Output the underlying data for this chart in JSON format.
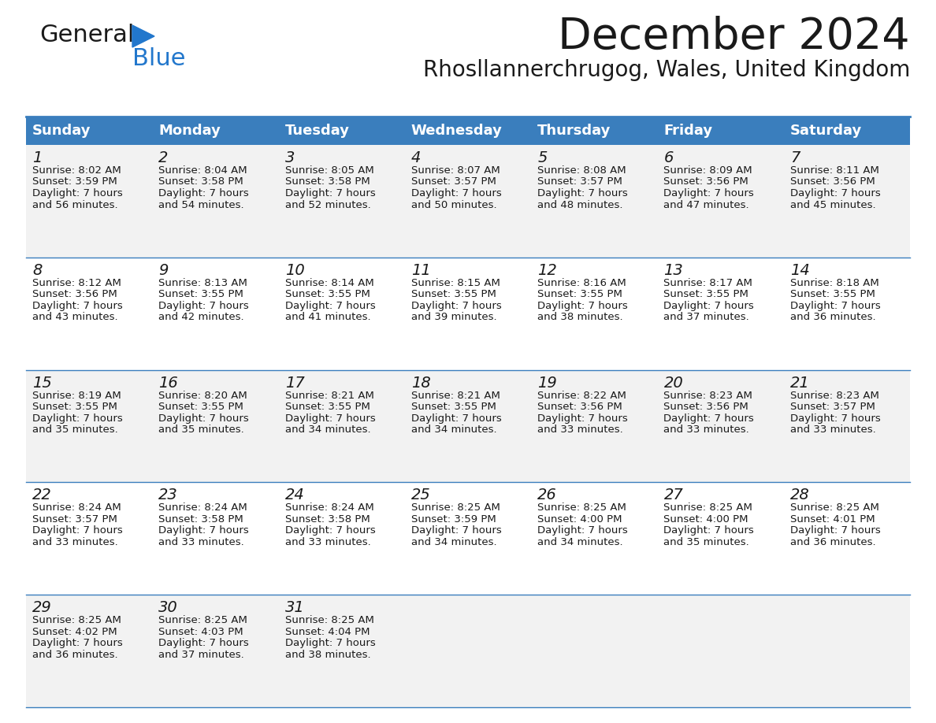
{
  "title": "December 2024",
  "subtitle": "Rhosllannerchrugog, Wales, United Kingdom",
  "header_color": "#3A7EBD",
  "header_text_color": "#FFFFFF",
  "cell_bg_even": "#F2F2F2",
  "cell_bg_odd": "#FFFFFF",
  "border_color": "#3A7EBD",
  "text_color": "#1a1a1a",
  "day_names": [
    "Sunday",
    "Monday",
    "Tuesday",
    "Wednesday",
    "Thursday",
    "Friday",
    "Saturday"
  ],
  "weeks": [
    [
      {
        "day": 1,
        "sunrise": "8:02 AM",
        "sunset": "3:59 PM",
        "daylight_hours": 7,
        "daylight_minutes": 56
      },
      {
        "day": 2,
        "sunrise": "8:04 AM",
        "sunset": "3:58 PM",
        "daylight_hours": 7,
        "daylight_minutes": 54
      },
      {
        "day": 3,
        "sunrise": "8:05 AM",
        "sunset": "3:58 PM",
        "daylight_hours": 7,
        "daylight_minutes": 52
      },
      {
        "day": 4,
        "sunrise": "8:07 AM",
        "sunset": "3:57 PM",
        "daylight_hours": 7,
        "daylight_minutes": 50
      },
      {
        "day": 5,
        "sunrise": "8:08 AM",
        "sunset": "3:57 PM",
        "daylight_hours": 7,
        "daylight_minutes": 48
      },
      {
        "day": 6,
        "sunrise": "8:09 AM",
        "sunset": "3:56 PM",
        "daylight_hours": 7,
        "daylight_minutes": 47
      },
      {
        "day": 7,
        "sunrise": "8:11 AM",
        "sunset": "3:56 PM",
        "daylight_hours": 7,
        "daylight_minutes": 45
      }
    ],
    [
      {
        "day": 8,
        "sunrise": "8:12 AM",
        "sunset": "3:56 PM",
        "daylight_hours": 7,
        "daylight_minutes": 43
      },
      {
        "day": 9,
        "sunrise": "8:13 AM",
        "sunset": "3:55 PM",
        "daylight_hours": 7,
        "daylight_minutes": 42
      },
      {
        "day": 10,
        "sunrise": "8:14 AM",
        "sunset": "3:55 PM",
        "daylight_hours": 7,
        "daylight_minutes": 41
      },
      {
        "day": 11,
        "sunrise": "8:15 AM",
        "sunset": "3:55 PM",
        "daylight_hours": 7,
        "daylight_minutes": 39
      },
      {
        "day": 12,
        "sunrise": "8:16 AM",
        "sunset": "3:55 PM",
        "daylight_hours": 7,
        "daylight_minutes": 38
      },
      {
        "day": 13,
        "sunrise": "8:17 AM",
        "sunset": "3:55 PM",
        "daylight_hours": 7,
        "daylight_minutes": 37
      },
      {
        "day": 14,
        "sunrise": "8:18 AM",
        "sunset": "3:55 PM",
        "daylight_hours": 7,
        "daylight_minutes": 36
      }
    ],
    [
      {
        "day": 15,
        "sunrise": "8:19 AM",
        "sunset": "3:55 PM",
        "daylight_hours": 7,
        "daylight_minutes": 35
      },
      {
        "day": 16,
        "sunrise": "8:20 AM",
        "sunset": "3:55 PM",
        "daylight_hours": 7,
        "daylight_minutes": 35
      },
      {
        "day": 17,
        "sunrise": "8:21 AM",
        "sunset": "3:55 PM",
        "daylight_hours": 7,
        "daylight_minutes": 34
      },
      {
        "day": 18,
        "sunrise": "8:21 AM",
        "sunset": "3:55 PM",
        "daylight_hours": 7,
        "daylight_minutes": 34
      },
      {
        "day": 19,
        "sunrise": "8:22 AM",
        "sunset": "3:56 PM",
        "daylight_hours": 7,
        "daylight_minutes": 33
      },
      {
        "day": 20,
        "sunrise": "8:23 AM",
        "sunset": "3:56 PM",
        "daylight_hours": 7,
        "daylight_minutes": 33
      },
      {
        "day": 21,
        "sunrise": "8:23 AM",
        "sunset": "3:57 PM",
        "daylight_hours": 7,
        "daylight_minutes": 33
      }
    ],
    [
      {
        "day": 22,
        "sunrise": "8:24 AM",
        "sunset": "3:57 PM",
        "daylight_hours": 7,
        "daylight_minutes": 33
      },
      {
        "day": 23,
        "sunrise": "8:24 AM",
        "sunset": "3:58 PM",
        "daylight_hours": 7,
        "daylight_minutes": 33
      },
      {
        "day": 24,
        "sunrise": "8:24 AM",
        "sunset": "3:58 PM",
        "daylight_hours": 7,
        "daylight_minutes": 33
      },
      {
        "day": 25,
        "sunrise": "8:25 AM",
        "sunset": "3:59 PM",
        "daylight_hours": 7,
        "daylight_minutes": 34
      },
      {
        "day": 26,
        "sunrise": "8:25 AM",
        "sunset": "4:00 PM",
        "daylight_hours": 7,
        "daylight_minutes": 34
      },
      {
        "day": 27,
        "sunrise": "8:25 AM",
        "sunset": "4:00 PM",
        "daylight_hours": 7,
        "daylight_minutes": 35
      },
      {
        "day": 28,
        "sunrise": "8:25 AM",
        "sunset": "4:01 PM",
        "daylight_hours": 7,
        "daylight_minutes": 36
      }
    ],
    [
      {
        "day": 29,
        "sunrise": "8:25 AM",
        "sunset": "4:02 PM",
        "daylight_hours": 7,
        "daylight_minutes": 36
      },
      {
        "day": 30,
        "sunrise": "8:25 AM",
        "sunset": "4:03 PM",
        "daylight_hours": 7,
        "daylight_minutes": 37
      },
      {
        "day": 31,
        "sunrise": "8:25 AM",
        "sunset": "4:04 PM",
        "daylight_hours": 7,
        "daylight_minutes": 38
      },
      null,
      null,
      null,
      null
    ]
  ],
  "logo_color_general": "#1a1a1a",
  "logo_color_blue": "#2277CC",
  "logo_triangle_color": "#2277CC",
  "title_fontsize": 40,
  "subtitle_fontsize": 20,
  "header_fontsize": 13,
  "day_num_fontsize": 14,
  "cell_text_fontsize": 9.5
}
